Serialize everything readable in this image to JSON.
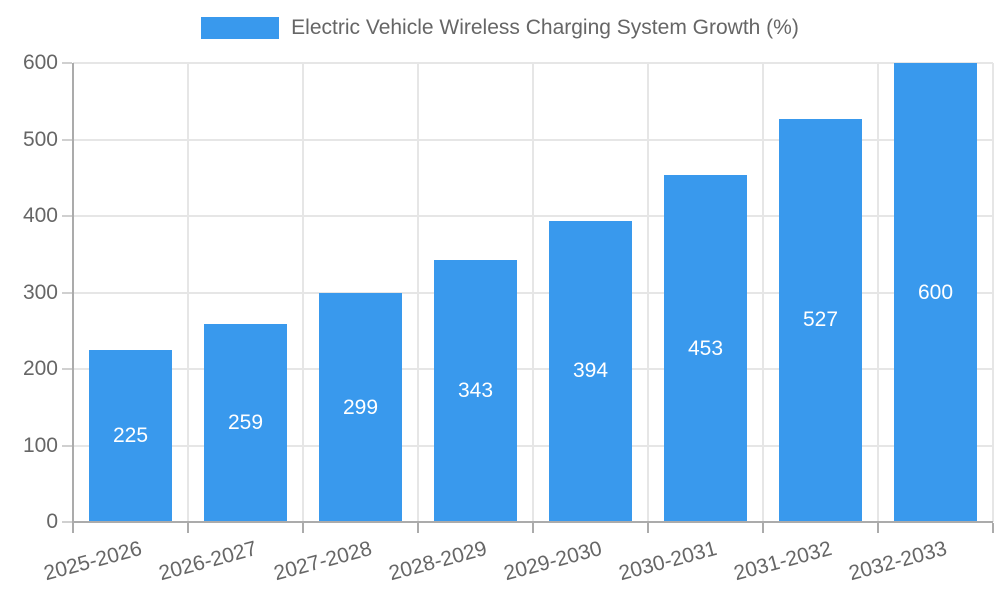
{
  "chart_data": {
    "type": "bar",
    "title": "Electric Vehicle Wireless Charging System Growth (%)",
    "categories": [
      "2025-2026",
      "2026-2027",
      "2027-2028",
      "2028-2029",
      "2029-2030",
      "2030-2031",
      "2031-2032",
      "2032-2033"
    ],
    "values": [
      225,
      259,
      299,
      343,
      394,
      453,
      527,
      600
    ],
    "series_label": "Electric Vehicle Wireless Charging System Growth (%)",
    "xlabel": "",
    "ylabel": "",
    "ylim": [
      0,
      600
    ],
    "yticks": [
      0,
      100,
      200,
      300,
      400,
      500,
      600
    ],
    "grid": true,
    "legend_position": "top",
    "value_labels": "inside-center",
    "x_label_rotation_deg": -15,
    "colors": {
      "bar": "#3999ED",
      "value_label": "#FFFFFF",
      "axis_text": "#666666",
      "gridline": "#E6E6E6",
      "axis_line": "#ABABAB",
      "x_tick_mark": "#ABABAB",
      "y_tick_mark": "#D0D0D0",
      "background": "#FFFFFF"
    }
  }
}
